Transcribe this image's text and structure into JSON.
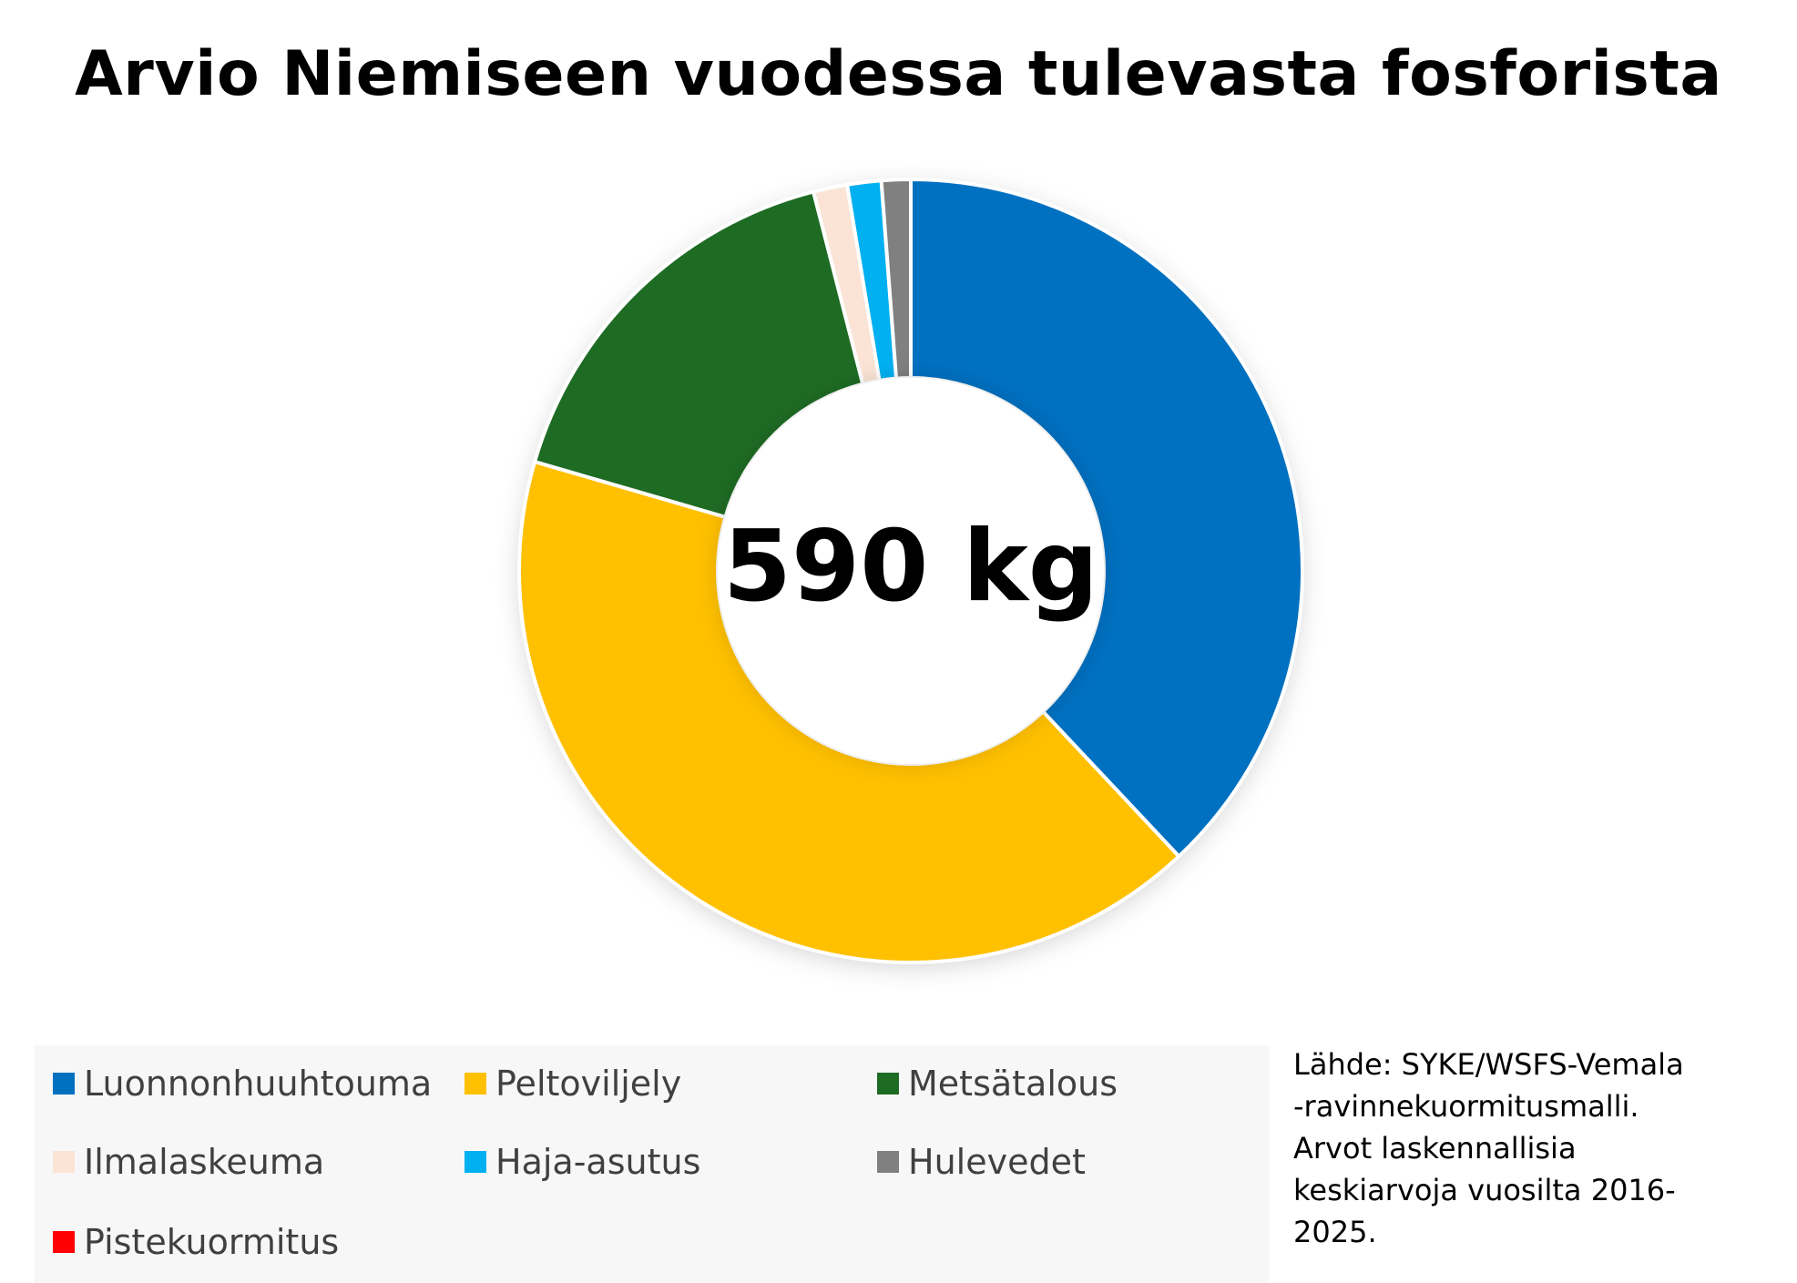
{
  "chart_data": {
    "type": "pie",
    "title": "Arvio Niemiseen vuodessa tulevasta fosforista",
    "center_label": "590 kg",
    "categories": [
      "Luonnonhuuhtouma",
      "Peltoviljely",
      "Metsätalous",
      "Ilmalaskeuma",
      "Haja-asutus",
      "Hulevedet",
      "Pistekuormitus"
    ],
    "values": [
      38.0,
      41.5,
      16.5,
      1.4,
      1.4,
      1.2,
      0.0
    ],
    "unit": "%",
    "colors": [
      "#0070c0",
      "#ffc000",
      "#1e6b24",
      "#fbe4d5",
      "#00b0f0",
      "#808080",
      "#ff0000"
    ],
    "legend_position": "bottom"
  },
  "source_note": {
    "lines": [
      "Lähde: SYKE/WSFS-Vemala",
      "-ravinnekuormitusmalli.",
      "Arvot laskennallisia",
      "keskiarvoja vuosilta 2016-",
      "2025."
    ]
  }
}
